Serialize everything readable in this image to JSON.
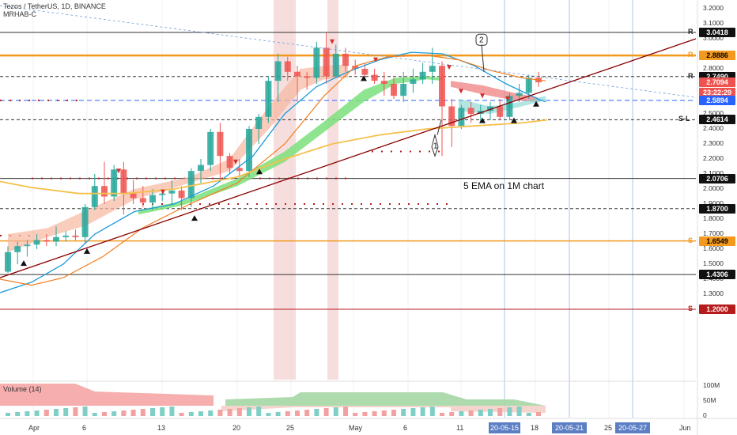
{
  "header": {
    "title": "Tezos / TetherUS, 1D, BINANCE",
    "indicator": "MRHAB-C"
  },
  "price_axis": [
    "3.2000",
    "3.1000",
    "3.0000",
    "2.9000",
    "2.8000",
    "2.7000",
    "2.6000",
    "2.5000",
    "2.4000",
    "2.3000",
    "2.2000",
    "2.1000",
    "2.0000",
    "1.9000",
    "1.8000",
    "1.7000",
    "1.6000",
    "1.5000",
    "1.4000",
    "1.3000"
  ],
  "price_labels": [
    {
      "text": "3.0418",
      "bg": "#111111",
      "fg": "#ffffff",
      "price": 3.0418,
      "tag": "R"
    },
    {
      "text": "2.8886",
      "bg": "#f39a1e",
      "fg": "#000000",
      "price": 2.8886,
      "tag": "R"
    },
    {
      "text": "2.7490",
      "bg": "#111111",
      "fg": "#ffffff",
      "price": 2.749,
      "tag": "R"
    },
    {
      "text": "2.7094",
      "bg": "#ef5350",
      "fg": "#ffffff",
      "price": 2.7094,
      "tag": ""
    },
    {
      "text": "23:22:29",
      "bg": "#ef5350",
      "fg": "#ffffff",
      "price": 2.643,
      "tag": ""
    },
    {
      "text": "2.5894",
      "bg": "#2962ff",
      "fg": "#ffffff",
      "price": 2.5894,
      "tag": ""
    },
    {
      "text": "2.4614",
      "bg": "#111111",
      "fg": "#ffffff",
      "price": 2.4614,
      "tag": "S-L"
    },
    {
      "text": "2.0706",
      "bg": "#111111",
      "fg": "#ffffff",
      "price": 2.0706,
      "tag": ""
    },
    {
      "text": "1.8700",
      "bg": "#111111",
      "fg": "#ffffff",
      "price": 1.87,
      "tag": ""
    },
    {
      "text": "1.6549",
      "bg": "#f39a1e",
      "fg": "#000000",
      "price": 1.6549,
      "tag": "S"
    },
    {
      "text": "1.4306",
      "bg": "#111111",
      "fg": "#ffffff",
      "price": 1.4306,
      "tag": ""
    },
    {
      "text": "1.2000",
      "bg": "#b71c1c",
      "fg": "#ffffff",
      "price": 1.2,
      "tag": "S"
    }
  ],
  "time_axis": [
    "Apr",
    "6",
    "13",
    "20",
    "25",
    "May",
    "6",
    "11",
    "18",
    "25",
    "Jun"
  ],
  "date_highlights": [
    "20-05-15",
    "20-05-21",
    "20-05-27"
  ],
  "annotations": {
    "ema_note": "5 EMA on 1M chart",
    "marker_1": "1",
    "marker_2": "2"
  },
  "volume": {
    "label": "Volume (14)",
    "axis": [
      "100M",
      "50M",
      "0"
    ]
  },
  "colors": {
    "bull": "#26a69a",
    "bear": "#ef5350",
    "orange": "#f39a1e",
    "blue_line": "#2962ff",
    "trend": "#8b0000"
  },
  "chart_data": {
    "type": "candlestick",
    "ohlc": [
      [
        1.45,
        1.62,
        1.44,
        1.58
      ],
      [
        1.58,
        1.65,
        1.5,
        1.62
      ],
      [
        1.62,
        1.66,
        1.55,
        1.63
      ],
      [
        1.63,
        1.7,
        1.6,
        1.66
      ],
      [
        1.66,
        1.7,
        1.62,
        1.65
      ],
      [
        1.65,
        1.75,
        1.62,
        1.68
      ],
      [
        1.68,
        1.72,
        1.65,
        1.69
      ],
      [
        1.69,
        1.73,
        1.66,
        1.68
      ],
      [
        1.68,
        1.9,
        1.64,
        1.88
      ],
      [
        1.88,
        2.1,
        1.86,
        2.02
      ],
      [
        2.02,
        2.18,
        1.9,
        1.95
      ],
      [
        1.95,
        2.16,
        1.92,
        2.13
      ],
      [
        2.13,
        2.18,
        1.83,
        1.97
      ],
      [
        1.97,
        2.06,
        1.9,
        1.94
      ],
      [
        1.94,
        2.02,
        1.88,
        1.91
      ],
      [
        1.91,
        2.0,
        1.86,
        1.96
      ],
      [
        1.96,
        2.0,
        1.92,
        1.97
      ],
      [
        1.97,
        2.06,
        1.9,
        1.99
      ],
      [
        1.99,
        2.02,
        1.86,
        1.94
      ],
      [
        1.94,
        2.14,
        1.88,
        2.12
      ],
      [
        2.12,
        2.2,
        2.04,
        2.16
      ],
      [
        2.16,
        2.4,
        2.12,
        2.38
      ],
      [
        2.38,
        2.44,
        2.05,
        2.22
      ],
      [
        2.22,
        2.24,
        2.1,
        2.14
      ],
      [
        2.14,
        2.2,
        2.08,
        2.12
      ],
      [
        2.12,
        2.42,
        2.08,
        2.4
      ],
      [
        2.4,
        2.5,
        2.3,
        2.48
      ],
      [
        2.48,
        2.75,
        2.44,
        2.72
      ],
      [
        2.72,
        2.9,
        2.58,
        2.85
      ],
      [
        2.85,
        2.88,
        2.72,
        2.78
      ],
      [
        2.78,
        2.82,
        2.58,
        2.75
      ],
      [
        2.75,
        2.78,
        2.66,
        2.74
      ],
      [
        2.74,
        2.98,
        2.7,
        2.94
      ],
      [
        2.94,
        3.04,
        2.7,
        2.75
      ],
      [
        2.75,
        2.96,
        2.74,
        2.9
      ],
      [
        2.9,
        2.94,
        2.78,
        2.82
      ],
      [
        2.82,
        2.86,
        2.76,
        2.8
      ],
      [
        2.8,
        2.84,
        2.74,
        2.76
      ],
      [
        2.76,
        2.8,
        2.7,
        2.72
      ],
      [
        2.72,
        2.78,
        2.62,
        2.7
      ],
      [
        2.7,
        2.74,
        2.6,
        2.62
      ],
      [
        2.62,
        2.78,
        2.58,
        2.7
      ],
      [
        2.7,
        2.8,
        2.64,
        2.73
      ],
      [
        2.73,
        2.84,
        2.7,
        2.78
      ],
      [
        2.78,
        2.94,
        2.7,
        2.82
      ],
      [
        2.82,
        2.85,
        2.22,
        2.55
      ],
      [
        2.55,
        2.6,
        2.28,
        2.42
      ],
      [
        2.42,
        2.56,
        2.4,
        2.54
      ],
      [
        2.54,
        2.58,
        2.44,
        2.5
      ],
      [
        2.5,
        2.56,
        2.44,
        2.52
      ],
      [
        2.52,
        2.58,
        2.46,
        2.55
      ],
      [
        2.55,
        2.6,
        2.46,
        2.48
      ],
      [
        2.48,
        2.64,
        2.46,
        2.62
      ],
      [
        2.62,
        2.7,
        2.58,
        2.64
      ],
      [
        2.64,
        2.76,
        2.6,
        2.74
      ],
      [
        2.74,
        2.78,
        2.68,
        2.71
      ]
    ]
  }
}
